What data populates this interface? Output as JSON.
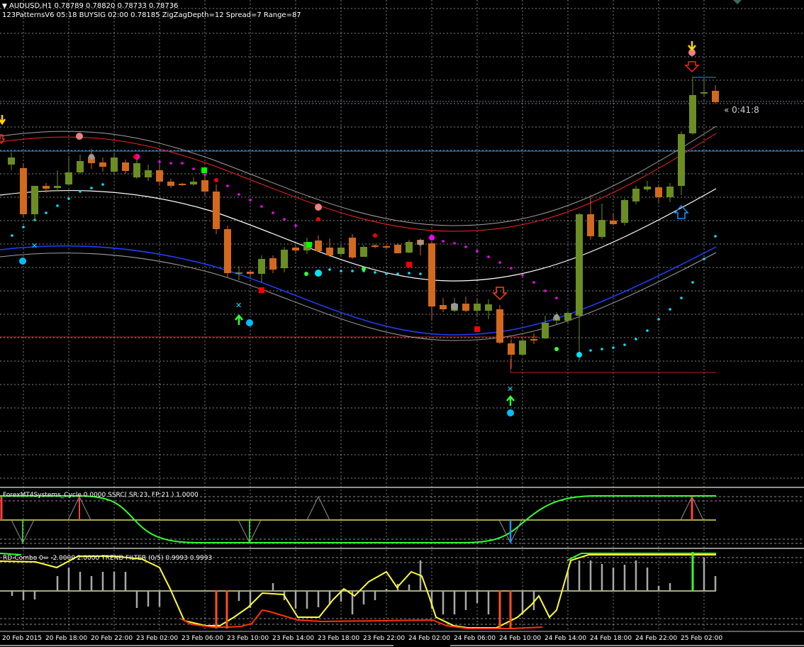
{
  "header": {
    "symbol_line": "AUDUSD,H1  0.78789 0.78820 0.78733 0.78736",
    "indicator_line": "123PatternsV6  05:18  BUYSIG  02:00  0.78185  ZigZagDepth=12  Spread=7  Range=87"
  },
  "main_chart": {
    "countdown": "« 0:41:8",
    "colors": {
      "bull_candle": "#6b8e23",
      "bear_candle": "#d2691e",
      "grid": "#c0c0c0",
      "band_outer": "#c0c0c0",
      "band_upper": "#ff2020",
      "band_mid": "#ffffff",
      "band_lower": "#2040ff",
      "horizontal_blue": "#1e90ff",
      "horizontal_red": "#b22222",
      "dots_magenta": "#ff00ff",
      "dots_cyan": "#00e5ff"
    }
  },
  "panel_ssrc": {
    "label": "ForexMT4Systems_Cycle 0.0000  SSRC( SR:23, FP:21 ) 1.0000",
    "colors": {
      "line": "#32ff32",
      "level": "#e0e060",
      "spike_red": "#ff4040",
      "spike_blue": "#1e90ff"
    }
  },
  "panel_rd": {
    "label": "RD-Combo 0= -2.0000 2.0000  TREND FILTER (0/5) 0.9993 0.9993",
    "colors": {
      "line_yellow": "#ffff33",
      "line_red": "#ff3010",
      "line_green": "#32ff32",
      "histogram": "#a9a9a9",
      "level": "#e0e0a0"
    }
  },
  "time_axis": {
    "labels": [
      "20 Feb 2015",
      "20 Feb 18:00",
      "20 Feb 22:00",
      "23 Feb 02:00",
      "23 Feb 06:00",
      "23 Feb 10:00",
      "23 Feb 14:00",
      "23 Feb 18:00",
      "23 Feb 22:00",
      "24 Feb 02:00",
      "24 Feb 06:00",
      "24 Feb 10:00",
      "24 Feb 14:00",
      "24 Feb 18:00",
      "24 Feb 22:00",
      "25 Feb 02:00"
    ]
  }
}
